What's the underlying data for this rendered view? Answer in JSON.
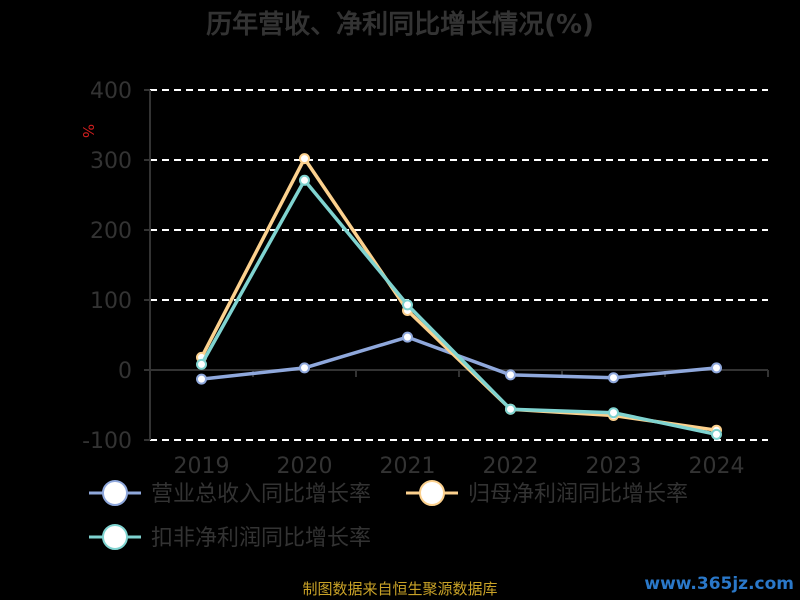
{
  "chart_data": {
    "type": "line",
    "title": "历年营收、净利同比增长情况(%)",
    "ylabel": "%",
    "ylim": [
      -100,
      400
    ],
    "yticks": [
      400,
      300,
      200,
      100,
      0,
      -100
    ],
    "categories": [
      "2019",
      "2020",
      "2021",
      "2022",
      "2023",
      "2024"
    ],
    "grid": true,
    "legend_position": "bottom",
    "series": [
      {
        "name": "营业总收入同比增长率",
        "color": "#8fa8dc",
        "values": [
          -13,
          3,
          47,
          -7,
          -11,
          3
        ]
      },
      {
        "name": "归母净利润同比增长率",
        "color": "#fcd18e",
        "values": [
          18,
          302,
          85,
          -56,
          -65,
          -86
        ]
      },
      {
        "name": "扣非净利润同比增长率",
        "color": "#7fd3d0",
        "values": [
          8,
          271,
          93,
          -56,
          -61,
          -92
        ]
      }
    ]
  },
  "source_text": "制图数据来自恒生聚源数据库",
  "watermark_text": "www.365jz.com"
}
